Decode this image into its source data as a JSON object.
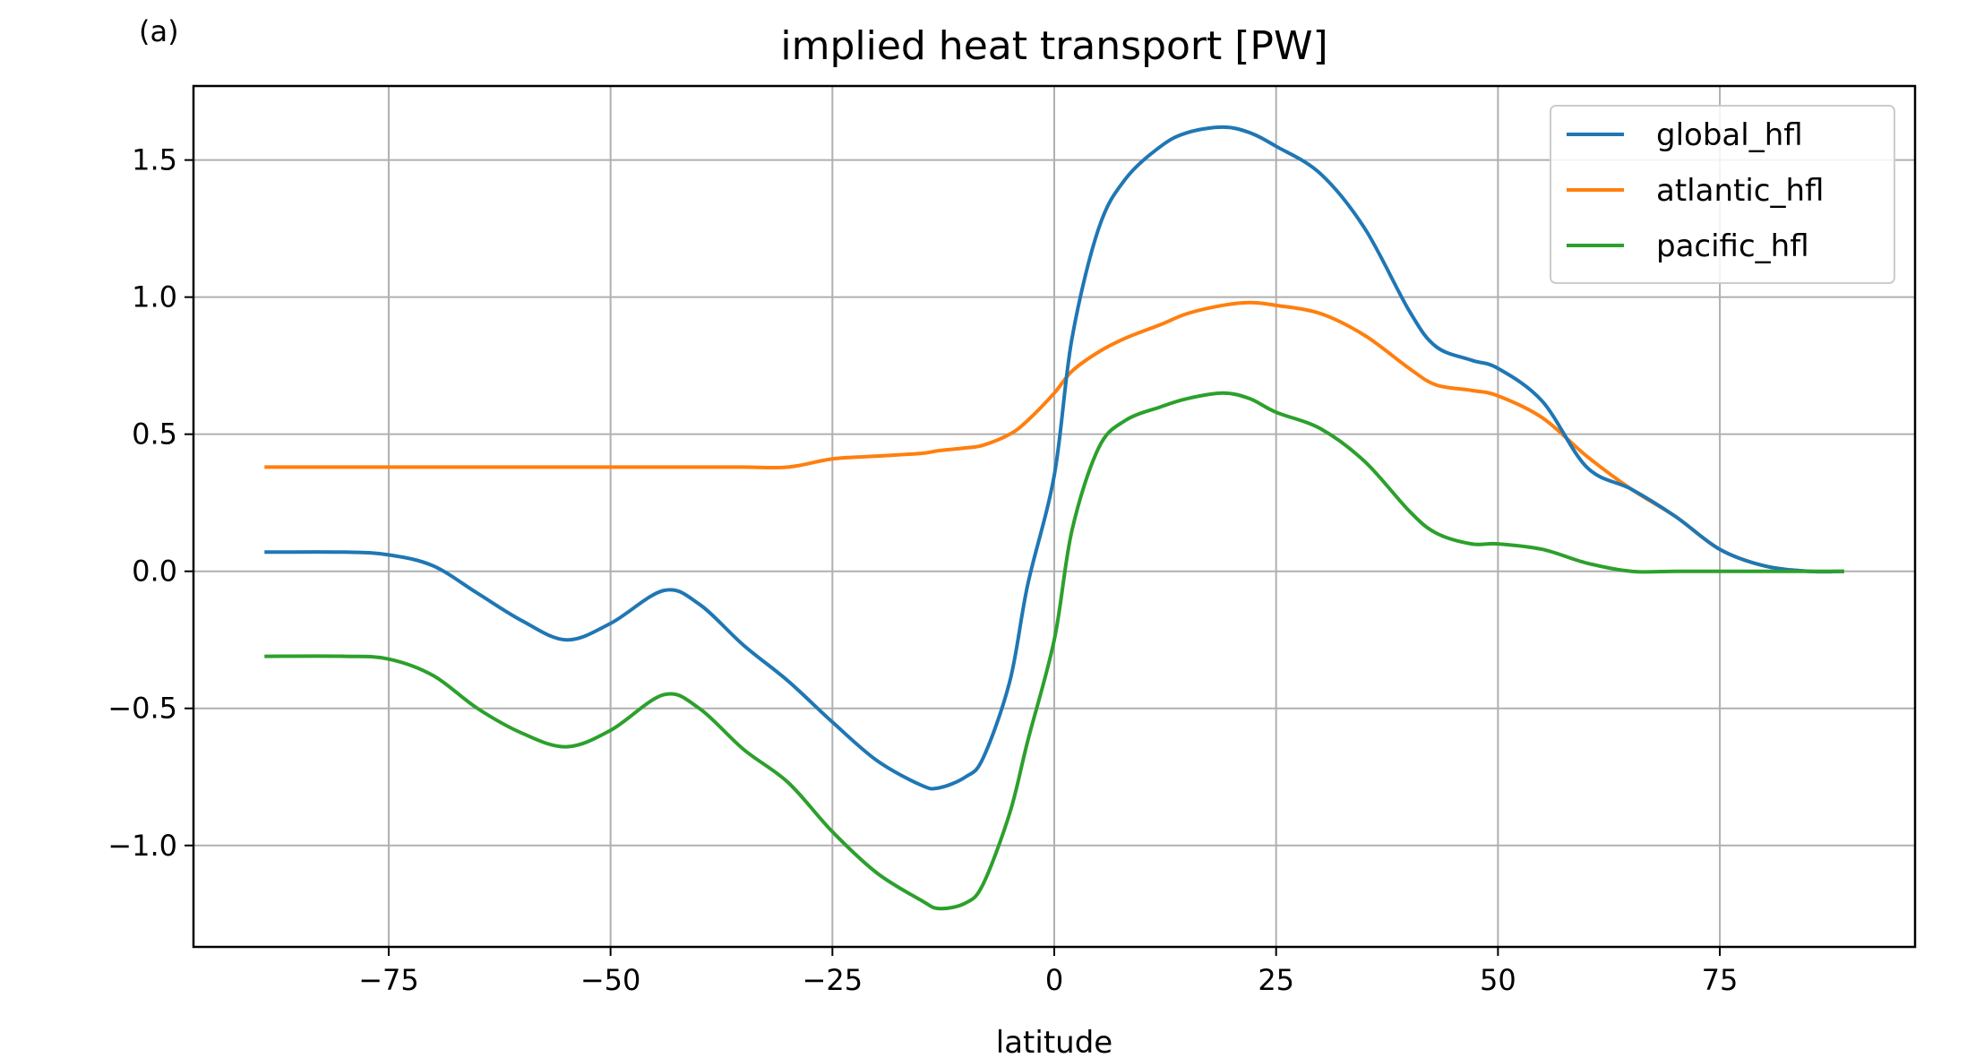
{
  "chart_data": {
    "type": "line",
    "panel_label": "(a)",
    "title": "implied heat transport [PW]",
    "xlabel": "latitude",
    "ylabel": "",
    "xlim": [
      -97,
      97
    ],
    "ylim": [
      -1.37,
      1.77
    ],
    "x_ticks": [
      -75,
      -50,
      -25,
      0,
      25,
      50,
      75
    ],
    "x_tick_labels": [
      "−75",
      "−50",
      "−25",
      "0",
      "25",
      "50",
      "75"
    ],
    "y_ticks": [
      -1.0,
      -0.5,
      0.0,
      0.5,
      1.0,
      1.5
    ],
    "y_tick_labels": [
      "−1.0",
      "−0.5",
      "0.0",
      "0.5",
      "1.0",
      "1.5"
    ],
    "grid": true,
    "legend_position": "top-right",
    "x": [
      -89,
      -80,
      -75,
      -70,
      -65,
      -60,
      -55,
      -50,
      -44,
      -40,
      -35,
      -30,
      -25,
      -20,
      -15,
      -13,
      -10,
      -8,
      -5,
      -3,
      0,
      2,
      5,
      8,
      12,
      15,
      19,
      22,
      25,
      30,
      35,
      40,
      43,
      47,
      50,
      55,
      60,
      65,
      70,
      75,
      80,
      85,
      89
    ],
    "series": [
      {
        "name": "global_hfl",
        "color": "#1f77b4",
        "values": [
          0.07,
          0.07,
          0.06,
          0.02,
          -0.08,
          -0.18,
          -0.25,
          -0.19,
          -0.07,
          -0.12,
          -0.27,
          -0.4,
          -0.55,
          -0.69,
          -0.78,
          -0.79,
          -0.75,
          -0.68,
          -0.4,
          -0.05,
          0.35,
          0.85,
          1.25,
          1.43,
          1.55,
          1.6,
          1.62,
          1.6,
          1.55,
          1.45,
          1.25,
          0.95,
          0.82,
          0.77,
          0.74,
          0.62,
          0.38,
          0.3,
          0.2,
          0.08,
          0.02,
          0.0,
          0.0
        ]
      },
      {
        "name": "atlantic_hfl",
        "color": "#ff7f0e",
        "values": [
          0.38,
          0.38,
          0.38,
          0.38,
          0.38,
          0.38,
          0.38,
          0.38,
          0.38,
          0.38,
          0.38,
          0.38,
          0.41,
          0.42,
          0.43,
          0.44,
          0.45,
          0.46,
          0.5,
          0.55,
          0.65,
          0.73,
          0.8,
          0.85,
          0.9,
          0.94,
          0.97,
          0.98,
          0.97,
          0.94,
          0.86,
          0.74,
          0.68,
          0.66,
          0.64,
          0.56,
          0.42,
          0.3,
          0.2,
          0.08,
          0.02,
          0.0,
          0.0
        ]
      },
      {
        "name": "pacific_hfl",
        "color": "#2ca02c",
        "values": [
          -0.31,
          -0.31,
          -0.32,
          -0.38,
          -0.5,
          -0.59,
          -0.64,
          -0.58,
          -0.45,
          -0.5,
          -0.65,
          -0.77,
          -0.95,
          -1.1,
          -1.2,
          -1.23,
          -1.21,
          -1.14,
          -0.88,
          -0.62,
          -0.25,
          0.15,
          0.45,
          0.55,
          0.6,
          0.63,
          0.65,
          0.63,
          0.58,
          0.52,
          0.4,
          0.22,
          0.14,
          0.1,
          0.1,
          0.08,
          0.03,
          0.0,
          0.0,
          0.0,
          0.0,
          0.0,
          0.0
        ]
      }
    ]
  }
}
